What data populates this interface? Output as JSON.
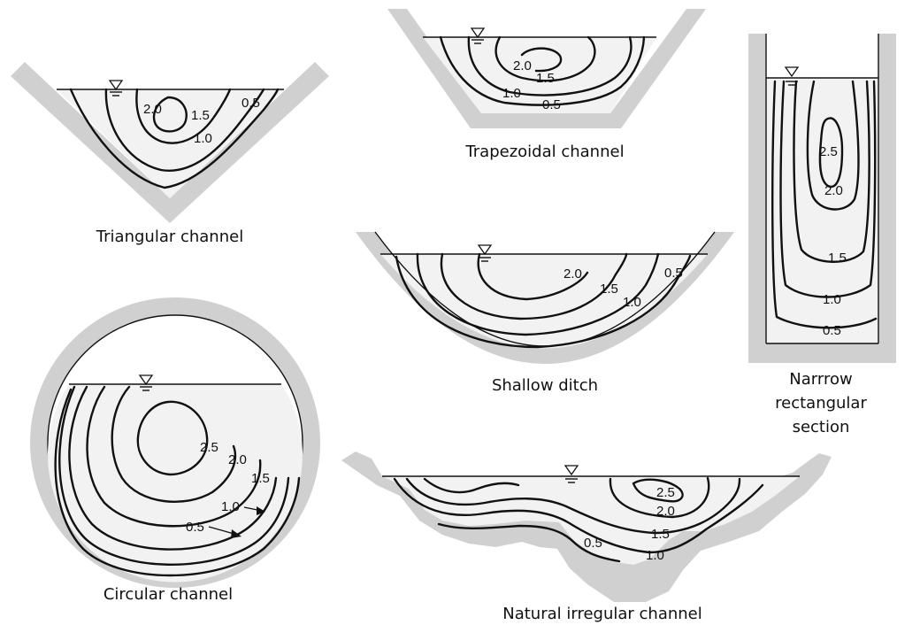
{
  "captions": {
    "triangular": "Triangular channel",
    "trapezoidal": "Trapezoidal channel",
    "shallow": "Shallow ditch",
    "narrow": [
      "Narrrow",
      "rectangular",
      "section"
    ],
    "circular": "Circular channel",
    "natural": "Natural irregular channel"
  },
  "contour_values": {
    "triangular": [
      "2.0",
      "1.5",
      "1.0",
      "0.5"
    ],
    "trapezoidal": [
      "2.0",
      "1.5",
      "1.0",
      "0.5"
    ],
    "shallow": [
      "2.0",
      "1.5",
      "1.0",
      "0.5"
    ],
    "narrow": [
      "2.5",
      "2.0",
      "1.5",
      "1.0",
      "0.5"
    ],
    "circular": [
      "2.5",
      "2.0",
      "1.5",
      "1.0",
      "0.5"
    ],
    "natural": [
      "2.5",
      "2.0",
      "1.5",
      "1.0",
      "0.5"
    ]
  },
  "colors": {
    "wall": "#d0d0d0",
    "water": "#f2f2f2",
    "line": "#111111"
  },
  "icons": {
    "water_surface": "inverted-triangle-water-level-symbol"
  }
}
